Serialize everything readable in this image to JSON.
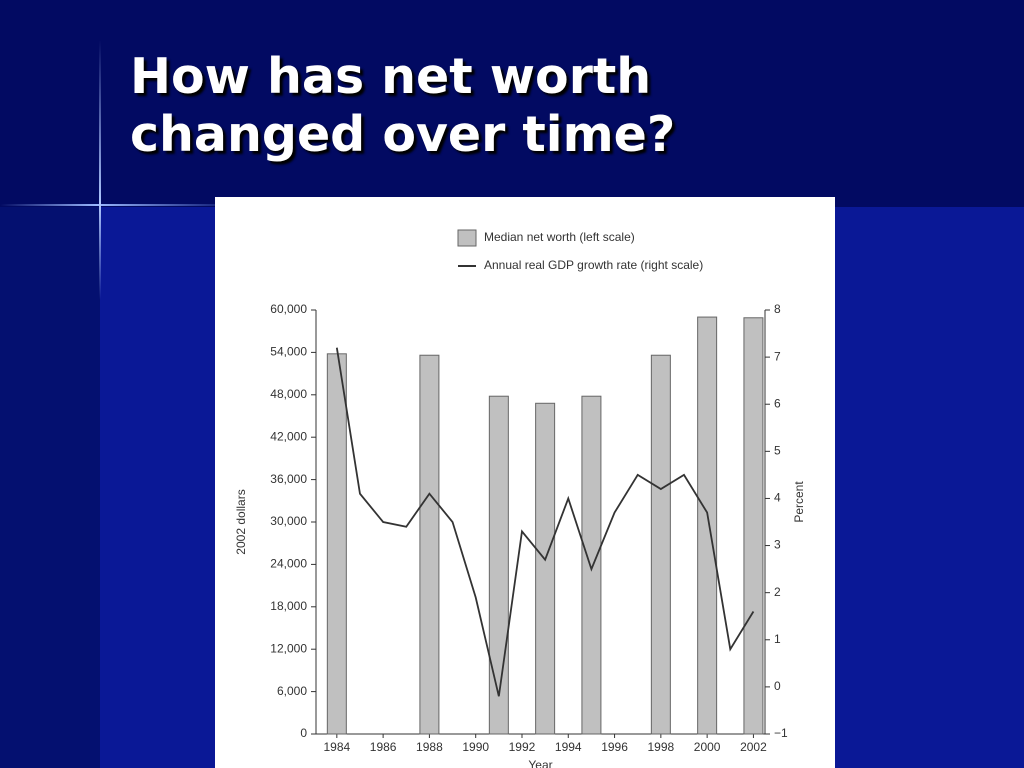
{
  "slide": {
    "title": "How has net worth changed over time?"
  },
  "chart_data": {
    "type": "bar",
    "x_label": "Year",
    "y_label": "2002 dollars",
    "y2_label": "Percent",
    "legend": "top",
    "xlim": [
      1983.1,
      2002.5
    ],
    "xticks": [
      1984,
      1986,
      1988,
      1990,
      1992,
      1994,
      1996,
      1998,
      2000,
      2002
    ],
    "ylim": [
      0,
      60000
    ],
    "yticks": [
      0,
      {
        "value": 6000,
        "label": "6,000"
      },
      {
        "value": 12000,
        "label": "12,000"
      },
      {
        "value": 18000,
        "label": "18,000"
      },
      {
        "value": 24000,
        "label": "24,000"
      },
      {
        "value": 30000,
        "label": "30,000"
      },
      {
        "value": 36000,
        "label": "36,000"
      },
      {
        "value": 42000,
        "label": "42,000"
      },
      {
        "value": 48000,
        "label": "48,000"
      },
      {
        "value": 54000,
        "label": "54,000"
      },
      {
        "value": 60000,
        "label": "60,000"
      }
    ],
    "y2lim": [
      -1,
      8
    ],
    "y2ticks": [
      {
        "value": -1,
        "label": "−1"
      },
      0,
      1,
      2,
      3,
      4,
      5,
      6,
      7,
      8
    ],
    "series": [
      {
        "name": "Median net worth (left scale)",
        "type": "bar",
        "color": "#c0c0c0",
        "x": [
          1984,
          1988,
          1991,
          1993,
          1995,
          1998,
          2000,
          2002
        ],
        "values": [
          53800,
          53600,
          47800,
          46800,
          47800,
          53600,
          59000,
          58900
        ]
      },
      {
        "name": "Annual real GDP growth rate (right scale)",
        "type": "line",
        "axis": "y2",
        "color": "#333333",
        "x": [
          1984,
          1985,
          1986,
          1987,
          1988,
          1989,
          1990,
          1991,
          1992,
          1993,
          1994,
          1995,
          1996,
          1997,
          1998,
          1999,
          2000,
          2001,
          2002
        ],
        "values": [
          7.2,
          4.1,
          3.5,
          3.4,
          4.1,
          3.5,
          1.9,
          -0.2,
          3.3,
          2.7,
          4.0,
          2.5,
          3.7,
          4.5,
          4.2,
          4.5,
          3.7,
          0.8,
          1.6
        ]
      }
    ]
  }
}
